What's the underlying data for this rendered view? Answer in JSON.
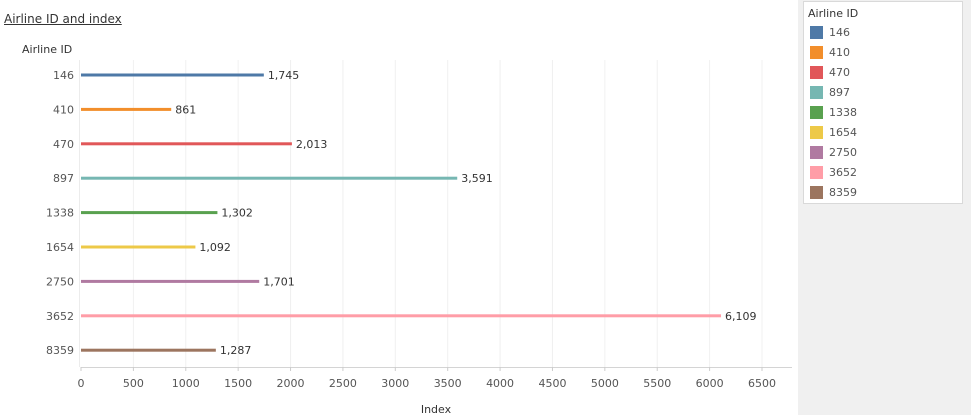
{
  "title": "Airline ID and index",
  "legend": {
    "title": "Airline ID"
  },
  "chart_data": {
    "type": "bar",
    "orientation": "horizontal",
    "title": "Airline ID and index",
    "xlabel": "Index",
    "ylabel": "Airline ID",
    "categories": [
      "146",
      "410",
      "470",
      "897",
      "1338",
      "1654",
      "2750",
      "3652",
      "8359"
    ],
    "values": [
      1745,
      861,
      2013,
      3591,
      1302,
      1092,
      1701,
      6109,
      1287
    ],
    "value_labels": [
      "1,745",
      "861",
      "2,013",
      "3,591",
      "1,302",
      "1,092",
      "1,701",
      "6,109",
      "1,287"
    ],
    "colors": [
      "#4e79a7",
      "#f28e2b",
      "#e15759",
      "#76b7b2",
      "#59a14f",
      "#edc948",
      "#b07aa1",
      "#ff9da7",
      "#9c755f"
    ],
    "xlim": [
      0,
      6500
    ],
    "xticks": [
      0,
      500,
      1000,
      1500,
      2000,
      2500,
      3000,
      3500,
      4000,
      4500,
      5000,
      5500,
      6000,
      6500
    ],
    "grid": "vertical",
    "legend_position": "right"
  }
}
